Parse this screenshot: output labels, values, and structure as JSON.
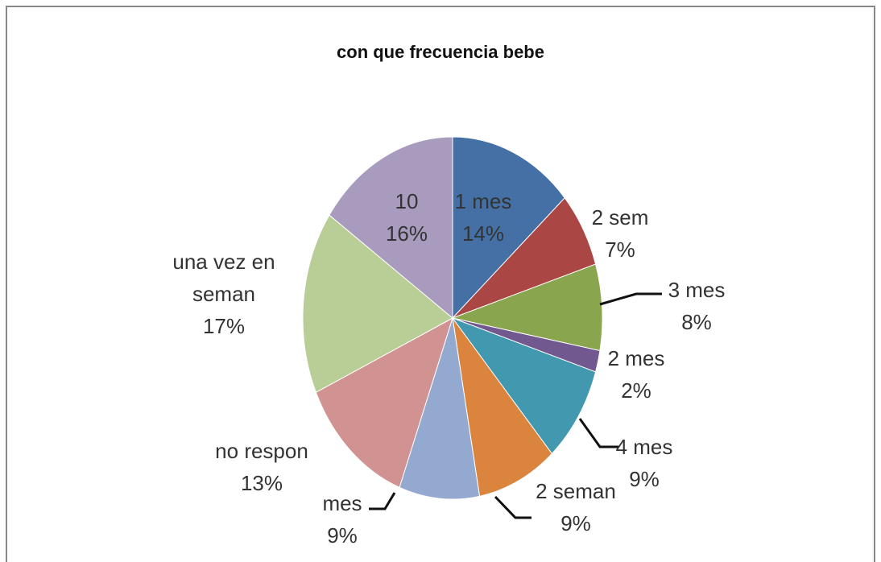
{
  "chart_data": {
    "type": "pie",
    "title": "con que frecuencia bebe",
    "categories": [
      "1 mes",
      "2 sem",
      "3 mes",
      "2 mes",
      "4 mes",
      "2 seman",
      "mes",
      "no respon",
      "una vez en seman",
      "10"
    ],
    "values": [
      14,
      7,
      8,
      2,
      9,
      9,
      9,
      13,
      17,
      16
    ],
    "value_labels": [
      "14%",
      "7%",
      "8%",
      "2%",
      "9%",
      "9%",
      "9%",
      "13%",
      "17%",
      "16%"
    ],
    "colors": [
      "#4470a6",
      "#aa4744",
      "#89a54e",
      "#71588f",
      "#4198af",
      "#db843d",
      "#93a9cf",
      "#d19392",
      "#b9cd96",
      "#a99bbd"
    ]
  }
}
